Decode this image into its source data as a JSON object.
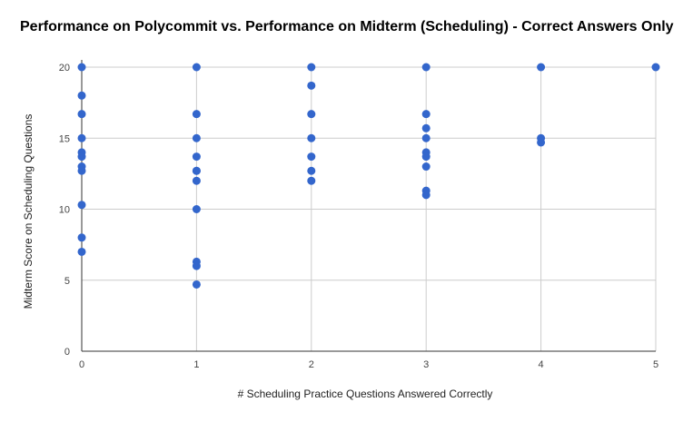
{
  "chart_data": {
    "type": "scatter",
    "title": "Performance on Polycommit vs. Performance on Midterm (Scheduling) - Correct Answers Only",
    "xlabel": "# Scheduling Practice Questions Answered Correctly",
    "ylabel": "Midterm Score on Scheduling Questions",
    "xlim": [
      0,
      5
    ],
    "ylim": [
      0,
      20
    ],
    "x_ticks": [
      "0",
      "1",
      "2",
      "3",
      "4",
      "5"
    ],
    "y_ticks": [
      "0",
      "5",
      "10",
      "15",
      "20"
    ],
    "grid": true,
    "legend": "none",
    "point_color": "#3366cc",
    "points": [
      {
        "x": 0,
        "y": 20
      },
      {
        "x": 0,
        "y": 18
      },
      {
        "x": 0,
        "y": 16.7
      },
      {
        "x": 0,
        "y": 15
      },
      {
        "x": 0,
        "y": 14
      },
      {
        "x": 0,
        "y": 13.7
      },
      {
        "x": 0,
        "y": 13
      },
      {
        "x": 0,
        "y": 12.7
      },
      {
        "x": 0,
        "y": 10.3
      },
      {
        "x": 0,
        "y": 8
      },
      {
        "x": 0,
        "y": 7
      },
      {
        "x": 1,
        "y": 20
      },
      {
        "x": 1,
        "y": 16.7
      },
      {
        "x": 1,
        "y": 15
      },
      {
        "x": 1,
        "y": 13.7
      },
      {
        "x": 1,
        "y": 12.7
      },
      {
        "x": 1,
        "y": 12.7
      },
      {
        "x": 1,
        "y": 12
      },
      {
        "x": 1,
        "y": 10
      },
      {
        "x": 1,
        "y": 6.3
      },
      {
        "x": 1,
        "y": 6
      },
      {
        "x": 1,
        "y": 4.7
      },
      {
        "x": 2,
        "y": 20
      },
      {
        "x": 2,
        "y": 18.7
      },
      {
        "x": 2,
        "y": 16.7
      },
      {
        "x": 2,
        "y": 15
      },
      {
        "x": 2,
        "y": 13.7
      },
      {
        "x": 2,
        "y": 12.7
      },
      {
        "x": 2,
        "y": 12
      },
      {
        "x": 3,
        "y": 20
      },
      {
        "x": 3,
        "y": 16.7
      },
      {
        "x": 3,
        "y": 15.7
      },
      {
        "x": 3,
        "y": 15
      },
      {
        "x": 3,
        "y": 14
      },
      {
        "x": 3,
        "y": 13.7
      },
      {
        "x": 3,
        "y": 13
      },
      {
        "x": 3,
        "y": 11.3
      },
      {
        "x": 3,
        "y": 11
      },
      {
        "x": 4,
        "y": 20
      },
      {
        "x": 4,
        "y": 15
      },
      {
        "x": 4,
        "y": 14.7
      },
      {
        "x": 5,
        "y": 20
      }
    ]
  }
}
